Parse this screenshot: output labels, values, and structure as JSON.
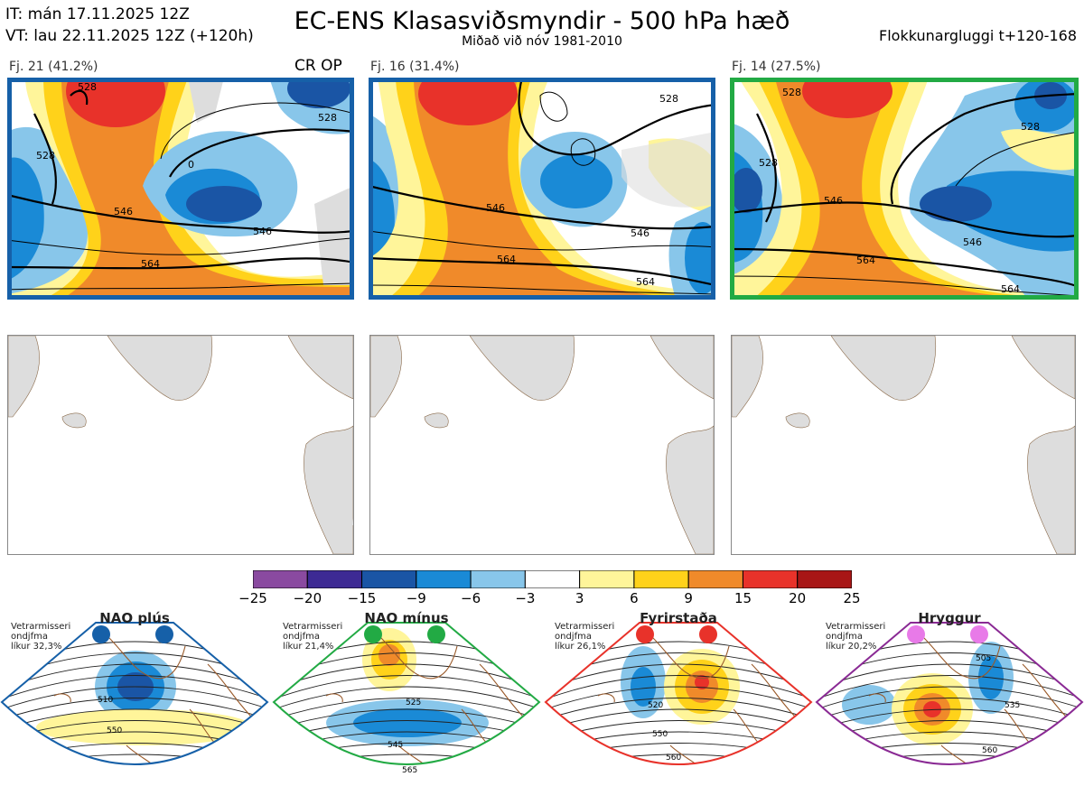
{
  "header": {
    "it_line": "IT: mán 17.11.2025 12Z",
    "vt_line": "VT: lau 22.11.2025 12Z  (+120h)",
    "title": "EC-ENS Klasasviðsmyndir - 500 hPa hæð",
    "subtitle": "Miðað við nóv 1981-2010",
    "window": "Flokkunargluggi t+120-168"
  },
  "clusters": [
    {
      "label": "Fj. 21 (41.2%)",
      "tag": "CR OP",
      "border": "#1660a8",
      "contours": [
        "528",
        "546",
        "564",
        "546",
        "528",
        "0",
        "528"
      ]
    },
    {
      "label": "Fj. 16 (31.4%)",
      "tag": "",
      "border": "#1660a8",
      "contours": [
        "546",
        "564",
        "564",
        "528",
        "546"
      ]
    },
    {
      "label": "Fj. 14 (27.5%)",
      "tag": "",
      "border": "#22aa44",
      "contours": [
        "546",
        "564",
        "546",
        "564",
        "528",
        "528",
        "528"
      ]
    }
  ],
  "colorbar": {
    "ticks": [
      "−25",
      "−20",
      "−15",
      "−9",
      "−6",
      "−3",
      "3",
      "6",
      "9",
      "15",
      "20",
      "25"
    ],
    "colors": [
      "#8a4aa0",
      "#3d2a94",
      "#1a55a5",
      "#1a8ad6",
      "#88c6ea",
      "#ffffff",
      "#fff59a",
      "#ffd21a",
      "#f08a2a",
      "#e8322a",
      "#a81616"
    ]
  },
  "regimes": [
    {
      "name": "NAO plús",
      "note": [
        "Vetrarmisseri",
        "ondjfma",
        "líkur 32,3%"
      ],
      "dot_color": "#1660a8",
      "border": "#1660a8",
      "contours": [
        "510",
        "550"
      ]
    },
    {
      "name": "NAO mínus",
      "note": [
        "Vetrarmisseri",
        "ondjfma",
        "líkur 21,4%"
      ],
      "dot_color": "#22aa44",
      "border": "#22aa44",
      "contours": [
        "525",
        "545",
        "565"
      ]
    },
    {
      "name": "Fyrirstaða",
      "note": [
        "Vetrarmisseri",
        "ondjfma",
        "líkur 26,1%"
      ],
      "dot_color": "#e8322a",
      "border": "#e8322a",
      "contours": [
        "520",
        "550",
        "560"
      ]
    },
    {
      "name": "Hryggur",
      "note": [
        "Vetrarmisseri",
        "ondjfma",
        "líkur 20,2%"
      ],
      "dot_color": "#e87ae8",
      "border": "#8a2a94",
      "contours": [
        "505",
        "535",
        "560"
      ]
    }
  ]
}
